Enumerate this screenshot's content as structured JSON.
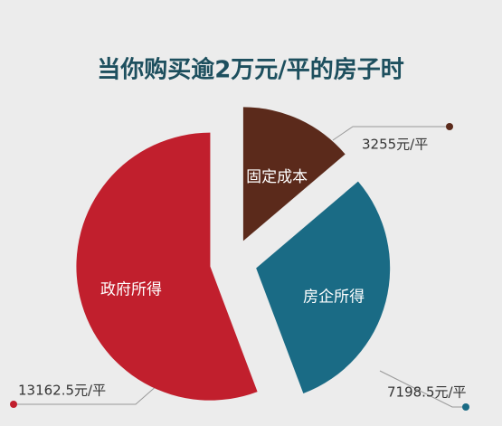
{
  "chart_data": {
    "type": "pie",
    "title": "当你购买逾2万元/平的房子时",
    "categories": [
      "固定成本",
      "房企所得",
      "政府所得"
    ],
    "values": [
      3255,
      7198.5,
      13162.5
    ],
    "value_labels": [
      "3255元/平",
      "7198.5元/平",
      "13162.5元/平"
    ],
    "colors": [
      "#5b2a1b",
      "#1a6b85",
      "#c11f2d"
    ]
  }
}
